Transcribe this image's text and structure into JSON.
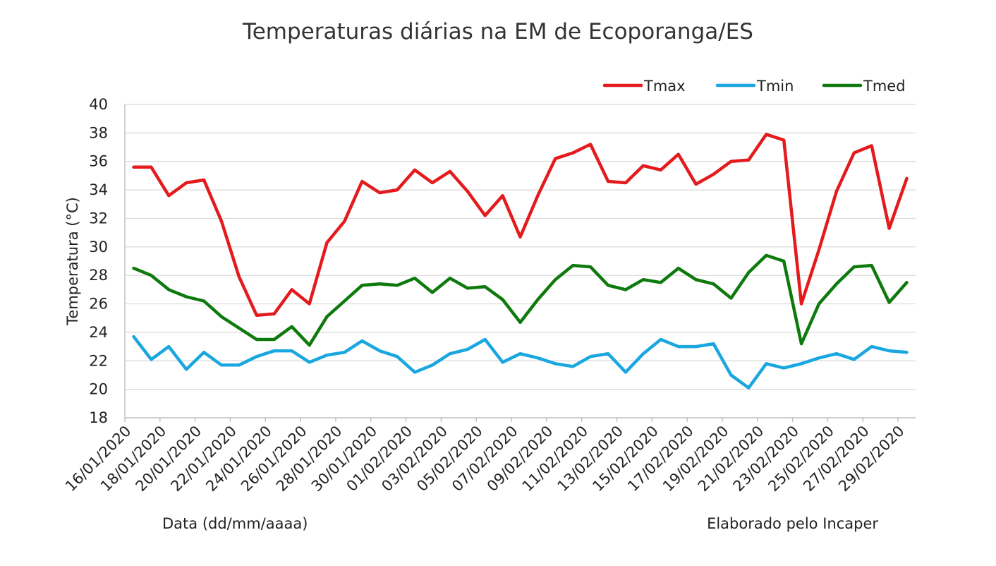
{
  "chart_data": {
    "type": "line",
    "title": "Temperaturas diárias na EM de Ecoporanga/ES",
    "xlabel": "Data (dd/mm/aaaa)",
    "ylabel": "Temperatura (°C)",
    "credit": "Elaborado pelo Incaper",
    "ylim": [
      18,
      40
    ],
    "yticks": [
      18,
      20,
      22,
      24,
      26,
      28,
      30,
      32,
      34,
      36,
      38,
      40
    ],
    "grid": true,
    "legend_position": "top-right",
    "x": [
      "16/01/2020",
      "17/01/2020",
      "18/01/2020",
      "19/01/2020",
      "20/01/2020",
      "21/01/2020",
      "22/01/2020",
      "23/01/2020",
      "24/01/2020",
      "25/01/2020",
      "26/01/2020",
      "27/01/2020",
      "28/01/2020",
      "29/01/2020",
      "30/01/2020",
      "31/01/2020",
      "01/02/2020",
      "02/02/2020",
      "03/02/2020",
      "04/02/2020",
      "05/02/2020",
      "06/02/2020",
      "07/02/2020",
      "08/02/2020",
      "09/02/2020",
      "10/02/2020",
      "11/02/2020",
      "12/02/2020",
      "13/02/2020",
      "14/02/2020",
      "15/02/2020",
      "16/02/2020",
      "17/02/2020",
      "18/02/2020",
      "19/02/2020",
      "20/02/2020",
      "21/02/2020",
      "22/02/2020",
      "23/02/2020",
      "24/02/2020",
      "25/02/2020",
      "26/02/2020",
      "27/02/2020",
      "28/02/2020",
      "29/02/2020"
    ],
    "xtick_labels": [
      "16/01/2020",
      "18/01/2020",
      "20/01/2020",
      "22/01/2020",
      "24/01/2020",
      "26/01/2020",
      "28/01/2020",
      "30/01/2020",
      "01/02/2020",
      "03/02/2020",
      "05/02/2020",
      "07/02/2020",
      "09/02/2020",
      "11/02/2020",
      "13/02/2020",
      "15/02/2020",
      "17/02/2020",
      "19/02/2020",
      "21/02/2020",
      "23/02/2020",
      "25/02/2020",
      "27/02/2020",
      "29/02/2020"
    ],
    "series": [
      {
        "name": "Tmax",
        "color": "#e41a1c",
        "values": [
          35.6,
          35.6,
          33.6,
          34.5,
          34.7,
          31.8,
          27.9,
          25.2,
          25.3,
          27.0,
          26.0,
          30.3,
          31.8,
          34.6,
          33.8,
          34.0,
          35.4,
          34.5,
          35.3,
          33.9,
          32.2,
          33.6,
          30.7,
          33.6,
          36.2,
          36.6,
          37.2,
          34.6,
          34.5,
          35.7,
          35.4,
          36.5,
          34.4,
          35.1,
          36.0,
          36.1,
          37.9,
          37.5,
          26.0,
          29.8,
          33.9,
          36.6,
          37.1,
          31.3,
          34.8
        ]
      },
      {
        "name": "Tmin",
        "color": "#1aa7e0",
        "values": [
          23.7,
          22.1,
          23.0,
          21.4,
          22.6,
          21.7,
          21.7,
          22.3,
          22.7,
          22.7,
          21.9,
          22.4,
          22.6,
          23.4,
          22.7,
          22.3,
          21.2,
          21.7,
          22.5,
          22.8,
          23.5,
          21.9,
          22.5,
          22.2,
          21.8,
          21.6,
          22.3,
          22.5,
          21.2,
          22.5,
          23.5,
          23.0,
          23.0,
          23.2,
          21.0,
          20.1,
          21.8,
          21.5,
          21.8,
          22.2,
          22.5,
          22.1,
          23.0,
          22.7,
          22.6
        ]
      },
      {
        "name": "Tmed",
        "color": "#0e7a0d",
        "values": [
          28.5,
          28.0,
          27.0,
          26.5,
          26.2,
          25.1,
          24.3,
          23.5,
          23.5,
          24.4,
          23.1,
          25.1,
          26.2,
          27.3,
          27.4,
          27.3,
          27.8,
          26.8,
          27.8,
          27.1,
          27.2,
          26.3,
          24.7,
          26.3,
          27.7,
          28.7,
          28.6,
          27.3,
          27.0,
          27.7,
          27.5,
          28.5,
          27.7,
          27.4,
          26.4,
          28.2,
          29.4,
          29.0,
          23.2,
          26.0,
          27.4,
          28.6,
          28.7,
          26.1,
          27.5
        ]
      }
    ]
  }
}
